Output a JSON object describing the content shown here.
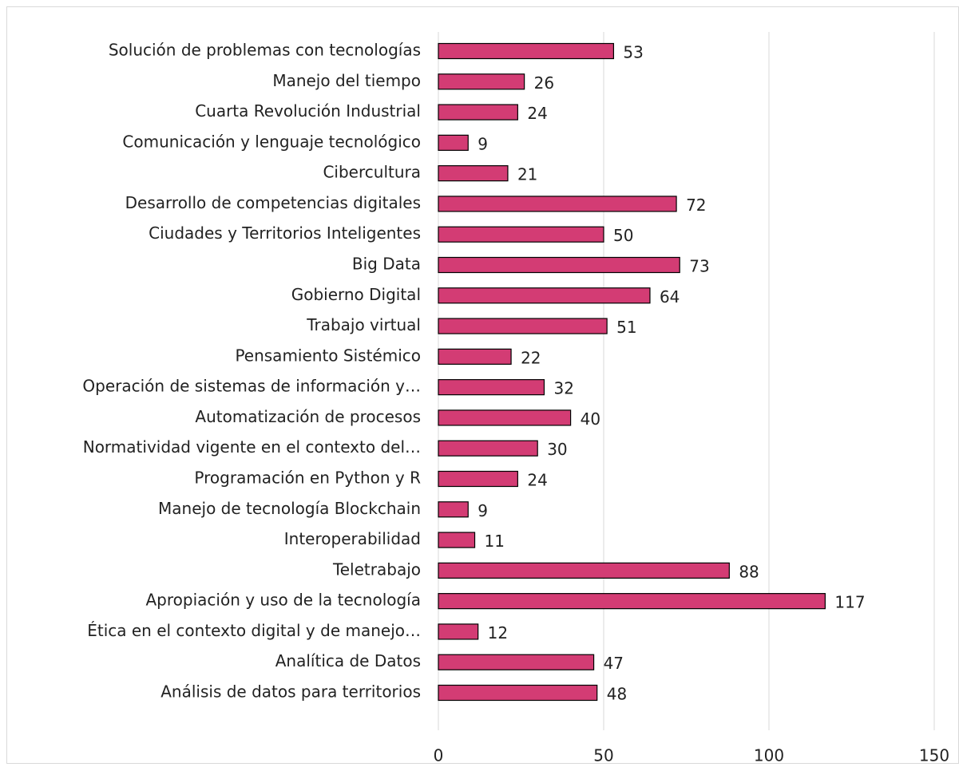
{
  "chart_data": {
    "type": "barh",
    "categories": [
      "Solución de problemas con tecnologías",
      "Manejo del tiempo",
      "Cuarta Revolución Industrial",
      "Comunicación y lenguaje tecnológico",
      "Cibercultura",
      "Desarrollo de competencias digitales",
      "Ciudades y Territorios Inteligentes",
      "Big Data",
      "Gobierno Digital",
      "Trabajo virtual",
      "Pensamiento Sistémico",
      "Operación de sistemas de información y…",
      "Automatización de procesos",
      "Normatividad vigente en el contexto del…",
      "Programación en Python y R",
      "Manejo de tecnología Blockchain",
      "Interoperabilidad",
      "Teletrabajo",
      "Apropiación y uso de la tecnología",
      "Ética en el contexto digital y de manejo…",
      "Analítica de Datos",
      "Análisis de datos para territorios"
    ],
    "values": [
      53,
      26,
      24,
      9,
      21,
      72,
      50,
      73,
      64,
      51,
      22,
      32,
      40,
      30,
      24,
      9,
      11,
      88,
      117,
      12,
      47,
      48
    ],
    "color": "#d33c74",
    "xlim": [
      0,
      150
    ],
    "xticks": [
      0,
      50,
      100,
      150
    ],
    "grid": true
  }
}
